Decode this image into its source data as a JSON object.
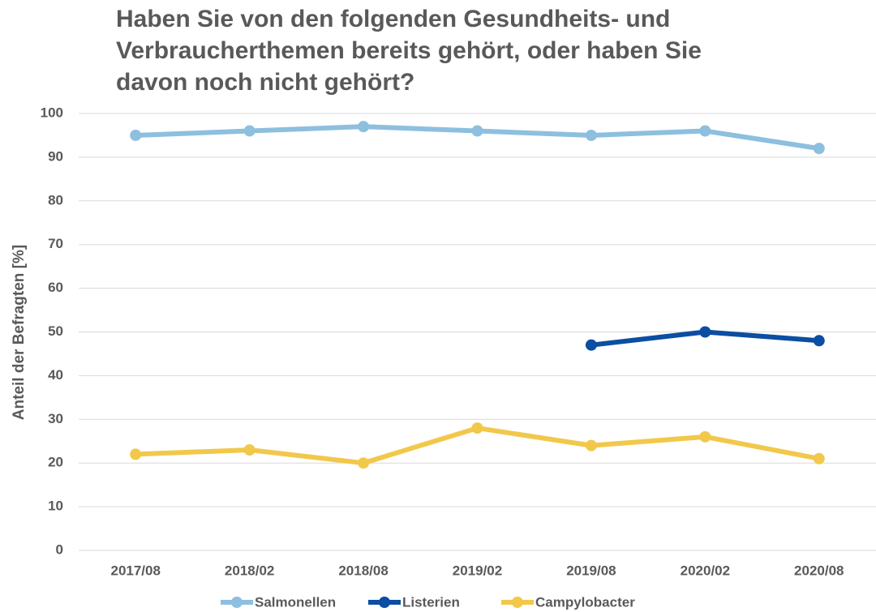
{
  "chart_data": {
    "type": "line",
    "title": "Haben Sie von den folgenden Gesundheits- und Verbraucherthemen bereits gehört, oder haben Sie davon noch nicht gehört?",
    "ylabel": "Anteil der Befragten [%]",
    "categories": [
      "2017/08",
      "2018/02",
      "2018/08",
      "2019/02",
      "2019/08",
      "2020/02",
      "2020/08"
    ],
    "series": [
      {
        "name": "Salmonellen",
        "color": "#8dbfdf",
        "values": [
          95,
          96,
          97,
          96,
          95,
          96,
          92
        ]
      },
      {
        "name": "Listerien",
        "color": "#0b4ea2",
        "values": [
          null,
          null,
          null,
          null,
          47,
          50,
          48
        ]
      },
      {
        "name": "Campylobacter",
        "color": "#f2c84b",
        "values": [
          22,
          23,
          20,
          28,
          24,
          26,
          21
        ]
      }
    ],
    "ylim": [
      0,
      100
    ],
    "yticks": [
      0,
      10,
      20,
      30,
      40,
      50,
      60,
      70,
      80,
      90,
      100
    ],
    "grid": true,
    "legend": "bottom"
  }
}
